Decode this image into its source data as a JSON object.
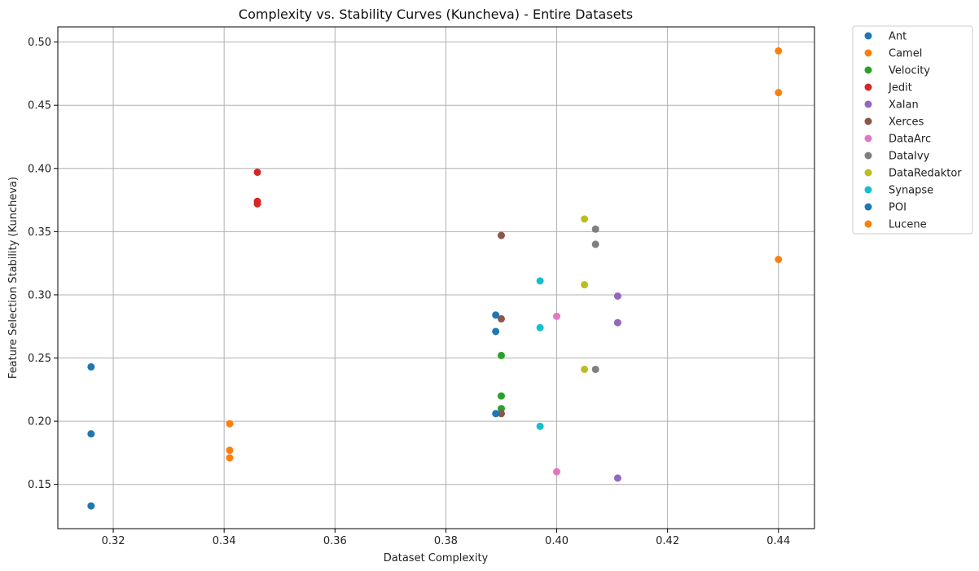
{
  "chart_data": {
    "type": "scatter",
    "title": "Complexity vs. Stability Curves (Kuncheva) - Entire Datasets",
    "xlabel": "Dataset Complexity",
    "ylabel": "Feature Selection Stability (Kuncheva)",
    "xlim": [
      0.31,
      0.4465
    ],
    "ylim": [
      0.115,
      0.512
    ],
    "xticks": [
      0.32,
      0.34,
      0.36,
      0.38,
      0.4,
      0.42,
      0.44
    ],
    "xtick_labels": [
      "0.32",
      "0.34",
      "0.36",
      "0.38",
      "0.40",
      "0.42",
      "0.44"
    ],
    "yticks": [
      0.15,
      0.2,
      0.25,
      0.3,
      0.35,
      0.4,
      0.45,
      0.5
    ],
    "ytick_labels": [
      "0.15",
      "0.20",
      "0.25",
      "0.30",
      "0.35",
      "0.40",
      "0.45",
      "0.50"
    ],
    "grid": true,
    "legend_position": "outside-top-right",
    "series": [
      {
        "name": "Ant",
        "color": "#1f77b4",
        "x": [
          0.316,
          0.316,
          0.316
        ],
        "y": [
          0.243,
          0.19,
          0.133
        ]
      },
      {
        "name": "Camel",
        "color": "#ff7f0e",
        "x": [
          0.341,
          0.341,
          0.341
        ],
        "y": [
          0.198,
          0.177,
          0.171
        ]
      },
      {
        "name": "Velocity",
        "color": "#2ca02c",
        "x": [
          0.39,
          0.39,
          0.39
        ],
        "y": [
          0.252,
          0.22,
          0.21
        ]
      },
      {
        "name": "Jedit",
        "color": "#d62728",
        "x": [
          0.346,
          0.346,
          0.346
        ],
        "y": [
          0.397,
          0.374,
          0.372
        ]
      },
      {
        "name": "Xalan",
        "color": "#9467bd",
        "x": [
          0.411,
          0.411,
          0.411
        ],
        "y": [
          0.299,
          0.278,
          0.155
        ]
      },
      {
        "name": "Xerces",
        "color": "#8c564b",
        "x": [
          0.39,
          0.39,
          0.39
        ],
        "y": [
          0.347,
          0.281,
          0.206
        ]
      },
      {
        "name": "DataArc",
        "color": "#e377c2",
        "x": [
          0.4,
          0.4
        ],
        "y": [
          0.283,
          0.16
        ]
      },
      {
        "name": "DataIvy",
        "color": "#7f7f7f",
        "x": [
          0.407,
          0.407,
          0.407
        ],
        "y": [
          0.352,
          0.34,
          0.241
        ]
      },
      {
        "name": "DataRedaktor",
        "color": "#bcbd22",
        "x": [
          0.405,
          0.405,
          0.405
        ],
        "y": [
          0.36,
          0.308,
          0.241
        ]
      },
      {
        "name": "Synapse",
        "color": "#17becf",
        "x": [
          0.397,
          0.397,
          0.397
        ],
        "y": [
          0.311,
          0.274,
          0.196
        ]
      },
      {
        "name": "POI",
        "color": "#1f77b4",
        "x": [
          0.389,
          0.389,
          0.389
        ],
        "y": [
          0.284,
          0.271,
          0.206
        ]
      },
      {
        "name": "Lucene",
        "color": "#ff7f0e",
        "x": [
          0.44,
          0.44,
          0.44
        ],
        "y": [
          0.493,
          0.46,
          0.328
        ]
      }
    ]
  }
}
